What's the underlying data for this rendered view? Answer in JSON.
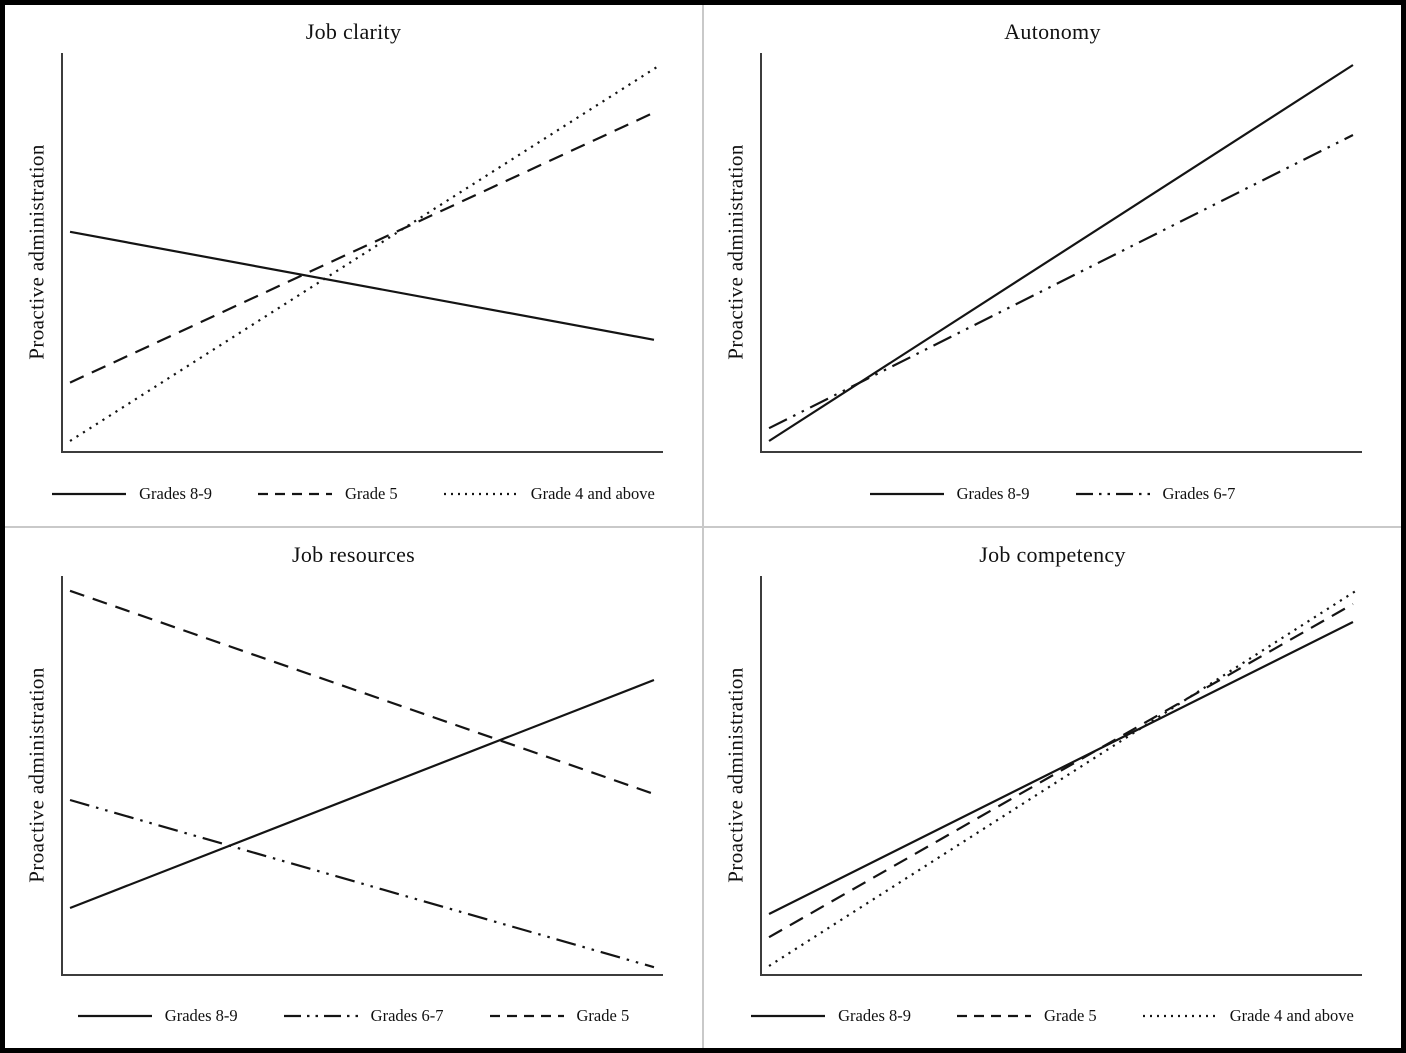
{
  "figure": {
    "background": "#ffffff",
    "border_color": "#000000",
    "divider_color": "#c9c9c9",
    "line_color": "#141414",
    "axis_color": "#3c3c3c"
  },
  "chart_data": [
    {
      "type": "line",
      "title": "Job clarity",
      "xlabel": "",
      "ylabel": "Proactive administration",
      "x_range": [
        0,
        1
      ],
      "y_range": [
        0,
        1
      ],
      "grid": false,
      "ticks_shown": false,
      "legend_position": "bottom",
      "series": [
        {
          "name": "Grades 8-9",
          "style": "solid",
          "points": [
            [
              0.015,
              0.553
            ],
            [
              0.985,
              0.283
            ]
          ]
        },
        {
          "name": "Grade 5",
          "style": "dashed",
          "points": [
            [
              0.015,
              0.176
            ],
            [
              0.985,
              0.851
            ]
          ]
        },
        {
          "name": "Grade 4 and above",
          "style": "dotted",
          "points": [
            [
              0.015,
              0.03
            ],
            [
              0.99,
              0.965
            ]
          ]
        }
      ]
    },
    {
      "type": "line",
      "title": "Autonomy",
      "xlabel": "",
      "ylabel": "Proactive administration",
      "x_range": [
        0,
        1
      ],
      "y_range": [
        0,
        1
      ],
      "grid": false,
      "ticks_shown": false,
      "legend_position": "bottom",
      "series": [
        {
          "name": "Grades 8-9",
          "style": "solid",
          "points": [
            [
              0.015,
              0.03
            ],
            [
              0.985,
              0.97
            ]
          ]
        },
        {
          "name": "Grades 6-7",
          "style": "dashdotdot",
          "points": [
            [
              0.015,
              0.062
            ],
            [
              0.985,
              0.795
            ]
          ]
        }
      ]
    },
    {
      "type": "line",
      "title": "Job resources",
      "xlabel": "",
      "ylabel": "Proactive administration",
      "x_range": [
        0,
        1
      ],
      "y_range": [
        0,
        1
      ],
      "grid": false,
      "ticks_shown": false,
      "legend_position": "bottom",
      "series": [
        {
          "name": "Grades 8-9",
          "style": "solid",
          "points": [
            [
              0.015,
              0.17
            ],
            [
              0.985,
              0.74
            ]
          ]
        },
        {
          "name": "Grades 6-7",
          "style": "dashdotdot",
          "points": [
            [
              0.015,
              0.44
            ],
            [
              0.985,
              0.022
            ]
          ]
        },
        {
          "name": "Grade 5",
          "style": "dashed",
          "points": [
            [
              0.015,
              0.963
            ],
            [
              0.985,
              0.455
            ]
          ]
        }
      ]
    },
    {
      "type": "line",
      "title": "Job competency",
      "xlabel": "",
      "ylabel": "Proactive administration",
      "x_range": [
        0,
        1
      ],
      "y_range": [
        0,
        1
      ],
      "grid": false,
      "ticks_shown": false,
      "legend_position": "bottom",
      "series": [
        {
          "name": "Grades 8-9",
          "style": "solid",
          "points": [
            [
              0.015,
              0.155
            ],
            [
              0.985,
              0.885
            ]
          ]
        },
        {
          "name": "Grade 5",
          "style": "dashed",
          "points": [
            [
              0.015,
              0.097
            ],
            [
              0.985,
              0.93
            ]
          ]
        },
        {
          "name": "Grade 4 and above",
          "style": "dotted",
          "points": [
            [
              0.015,
              0.025
            ],
            [
              0.99,
              0.963
            ]
          ]
        }
      ]
    }
  ]
}
